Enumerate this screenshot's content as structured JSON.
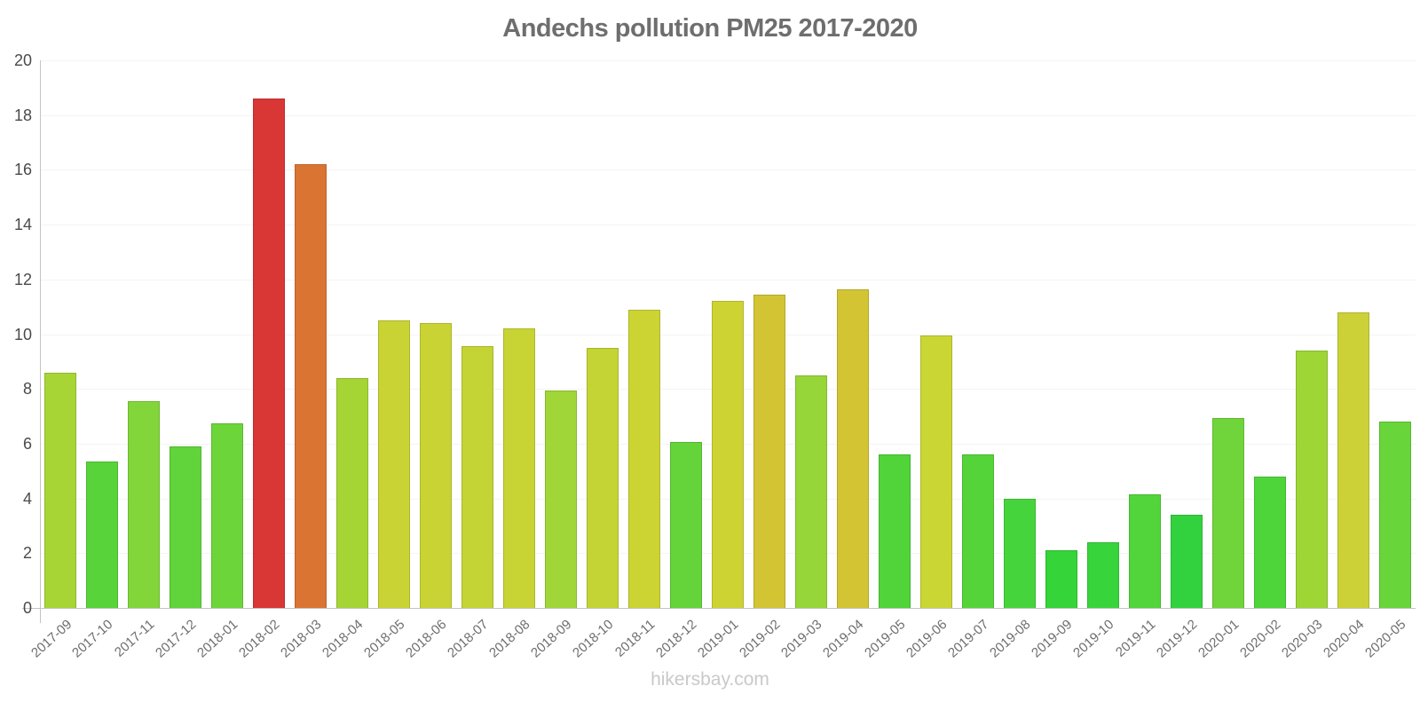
{
  "chart_data": {
    "type": "bar",
    "title": "Andechs pollution PM25 2017-2020",
    "xlabel": "",
    "ylabel": "",
    "ylim": [
      0,
      20
    ],
    "yticks": [
      "0",
      "2",
      "4",
      "6",
      "8",
      "10",
      "12",
      "14",
      "16",
      "18",
      "20"
    ],
    "grid": "horizontal gridlines at even values, very light gray",
    "legend_position": "none",
    "categories": [
      "2017-09",
      "2017-10",
      "2017-11",
      "2017-12",
      "2018-01",
      "2018-02",
      "2018-03",
      "2018-04",
      "2018-05",
      "2018-06",
      "2018-07",
      "2018-08",
      "2018-09",
      "2018-10",
      "2018-11",
      "2018-12",
      "2019-01",
      "2019-02",
      "2019-03",
      "2019-04",
      "2019-05",
      "2019-06",
      "2019-07",
      "2019-08",
      "2019-09",
      "2019-10",
      "2019-11",
      "2019-12",
      "2020-01",
      "2020-02",
      "2020-03",
      "2020-04",
      "2020-05"
    ],
    "values": [
      8.6,
      5.35,
      7.55,
      5.9,
      6.75,
      18.6,
      16.2,
      8.4,
      10.5,
      10.4,
      9.55,
      10.2,
      7.95,
      9.5,
      10.9,
      6.05,
      11.2,
      11.45,
      8.5,
      11.65,
      5.6,
      9.95,
      5.6,
      4.0,
      2.1,
      2.4,
      4.15,
      3.4,
      6.95,
      4.8,
      9.4,
      10.8,
      6.8
    ],
    "bar_colors": [
      "#a6d535",
      "#58d43a",
      "#82d63a",
      "#60d43a",
      "#6cd53a",
      "#d93636",
      "#d97433",
      "#a4d535",
      "#c9d434",
      "#c9d434",
      "#c3d434",
      "#c8d434",
      "#a0d637",
      "#c3d434",
      "#ccd434",
      "#64d43a",
      "#ced334",
      "#d3c434",
      "#96d638",
      "#d3c434",
      "#50d43a",
      "#c9d634",
      "#55d43a",
      "#46d43c",
      "#35d438",
      "#38d43c",
      "#52d53a",
      "#32d23f",
      "#70d53a",
      "#4ed53a",
      "#9ed636",
      "#ccd138",
      "#68d53a"
    ]
  },
  "footer": {
    "text": "hikersbay.com"
  },
  "style_colors": {
    "background": "#ffffff",
    "title_text": "#6e6e6e",
    "axis_line": "#c4c4c4",
    "grid_line": "#f4f4f4",
    "y_tick_text": "#4a4a4a",
    "x_tick_text": "#6e6e6e",
    "footer_text": "#c9c9c9",
    "high_value": "#d93636",
    "elevated_value": "#d97433",
    "mid_value": "#c9d434",
    "low_value": "#38d43c"
  }
}
